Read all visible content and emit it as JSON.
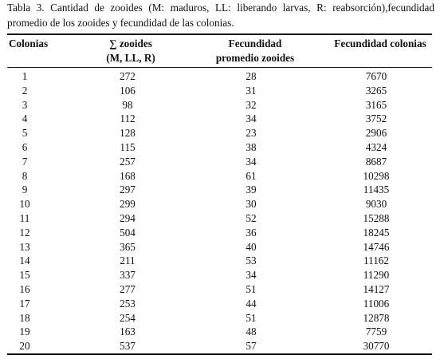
{
  "caption": "Tabla 3. Cantidad de zooides (M: maduros, LL: liberando larvas, R: reabsorción),fecundidad promedio de los zooides y fecundidad de las colonias.",
  "table": {
    "headers": {
      "colonias": "Colonias",
      "zooides_line1": "∑ zooides",
      "zooides_line2": "(M, LL, R)",
      "fecundidad_line1": "Fecundidad",
      "fecundidad_line2": "promedio zooides",
      "fecundidad_colonias": "Fecundidad colonias"
    },
    "rows": [
      [
        "1",
        "272",
        "28",
        "7670"
      ],
      [
        "2",
        "106",
        "31",
        "3265"
      ],
      [
        "3",
        "98",
        "32",
        "3165"
      ],
      [
        "4",
        "112",
        "34",
        "3752"
      ],
      [
        "5",
        "128",
        "23",
        "2906"
      ],
      [
        "6",
        "115",
        "38",
        "4324"
      ],
      [
        "7",
        "257",
        "34",
        "8687"
      ],
      [
        "8",
        "168",
        "61",
        "10298"
      ],
      [
        "9",
        "297",
        "39",
        "11435"
      ],
      [
        "10",
        "299",
        "30",
        "9030"
      ],
      [
        "11",
        "294",
        "52",
        "15288"
      ],
      [
        "12",
        "504",
        "36",
        "18245"
      ],
      [
        "13",
        "365",
        "40",
        "14746"
      ],
      [
        "14",
        "211",
        "53",
        "11162"
      ],
      [
        "15",
        "337",
        "34",
        "11290"
      ],
      [
        "16",
        "277",
        "51",
        "14127"
      ],
      [
        "17",
        "253",
        "44",
        "11006"
      ],
      [
        "18",
        "254",
        "51",
        "12878"
      ],
      [
        "19",
        "163",
        "48",
        "7759"
      ],
      [
        "20",
        "537",
        "57",
        "30770"
      ]
    ]
  }
}
